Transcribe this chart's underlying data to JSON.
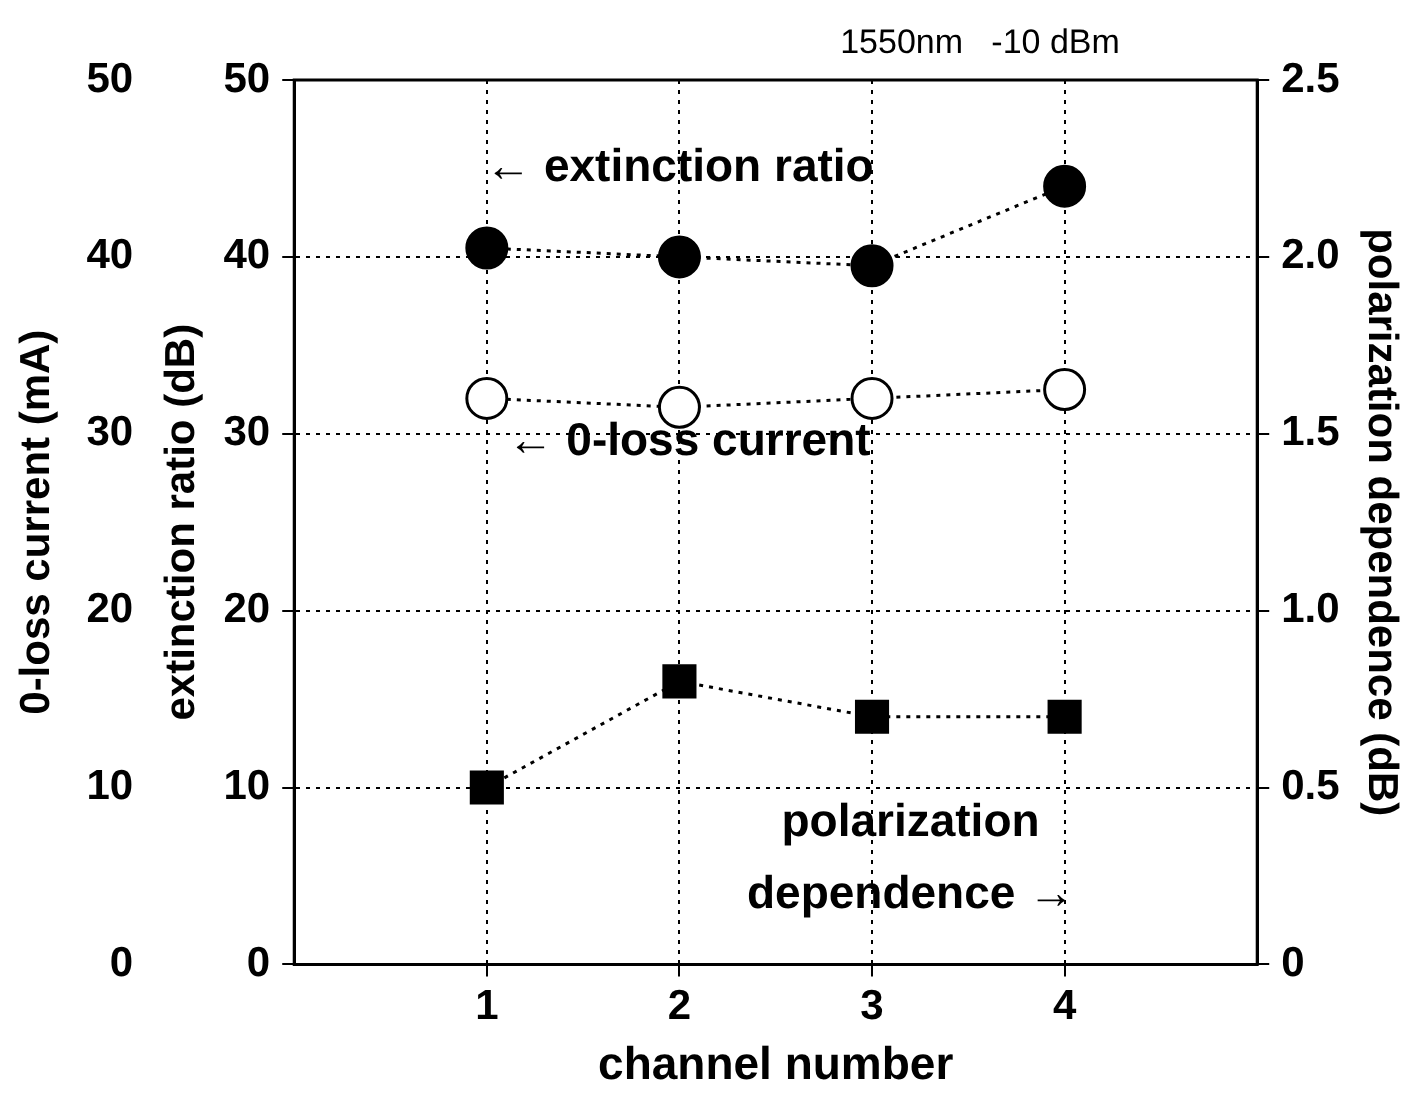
{
  "chart_data": {
    "type": "line",
    "title": "1550nm   -10 dBm",
    "xlabel": "channel number",
    "ylabel": "extinction ratio (dB)",
    "y2label": "polarization dependence (dB)",
    "y3label": "0-loss current (mA)",
    "x": [
      1,
      2,
      3,
      4
    ],
    "xlim": [
      0,
      5
    ],
    "xticks": [
      1,
      2,
      3,
      4
    ],
    "ylim": [
      0,
      50
    ],
    "yticks": [
      0,
      10,
      20,
      30,
      40,
      50
    ],
    "y2lim": [
      0,
      2.5
    ],
    "y2ticks": [
      0,
      {
        "value": 0.5,
        "label": "0.5"
      },
      {
        "value": 1,
        "label": "1.0"
      },
      {
        "value": 1.5,
        "label": "1.5"
      },
      {
        "value": 2,
        "label": "2.0"
      },
      {
        "value": 2.5,
        "label": "2.5"
      }
    ],
    "y3lim": [
      0,
      50
    ],
    "y3ticks": [
      0,
      10,
      20,
      30,
      40,
      50
    ],
    "series": [
      {
        "color": "#000000",
        "marker": "circle",
        "values": [
          40.5,
          40,
          39.5,
          44
        ]
      },
      {
        "color": "#ffffff",
        "marker": "circle",
        "axis": "y3",
        "values": [
          32,
          31.5,
          32,
          32.5
        ]
      },
      {
        "color": "#000000",
        "marker": "square",
        "axis": "y2",
        "values": [
          0.5,
          0.8,
          0.7,
          0.7
        ]
      }
    ],
    "annotations": [
      "← extinction ratio",
      "← 0-loss current",
      "polarization\ndependence →"
    ],
    "grid": true,
    "legend": false,
    "line_style": "dotted"
  }
}
